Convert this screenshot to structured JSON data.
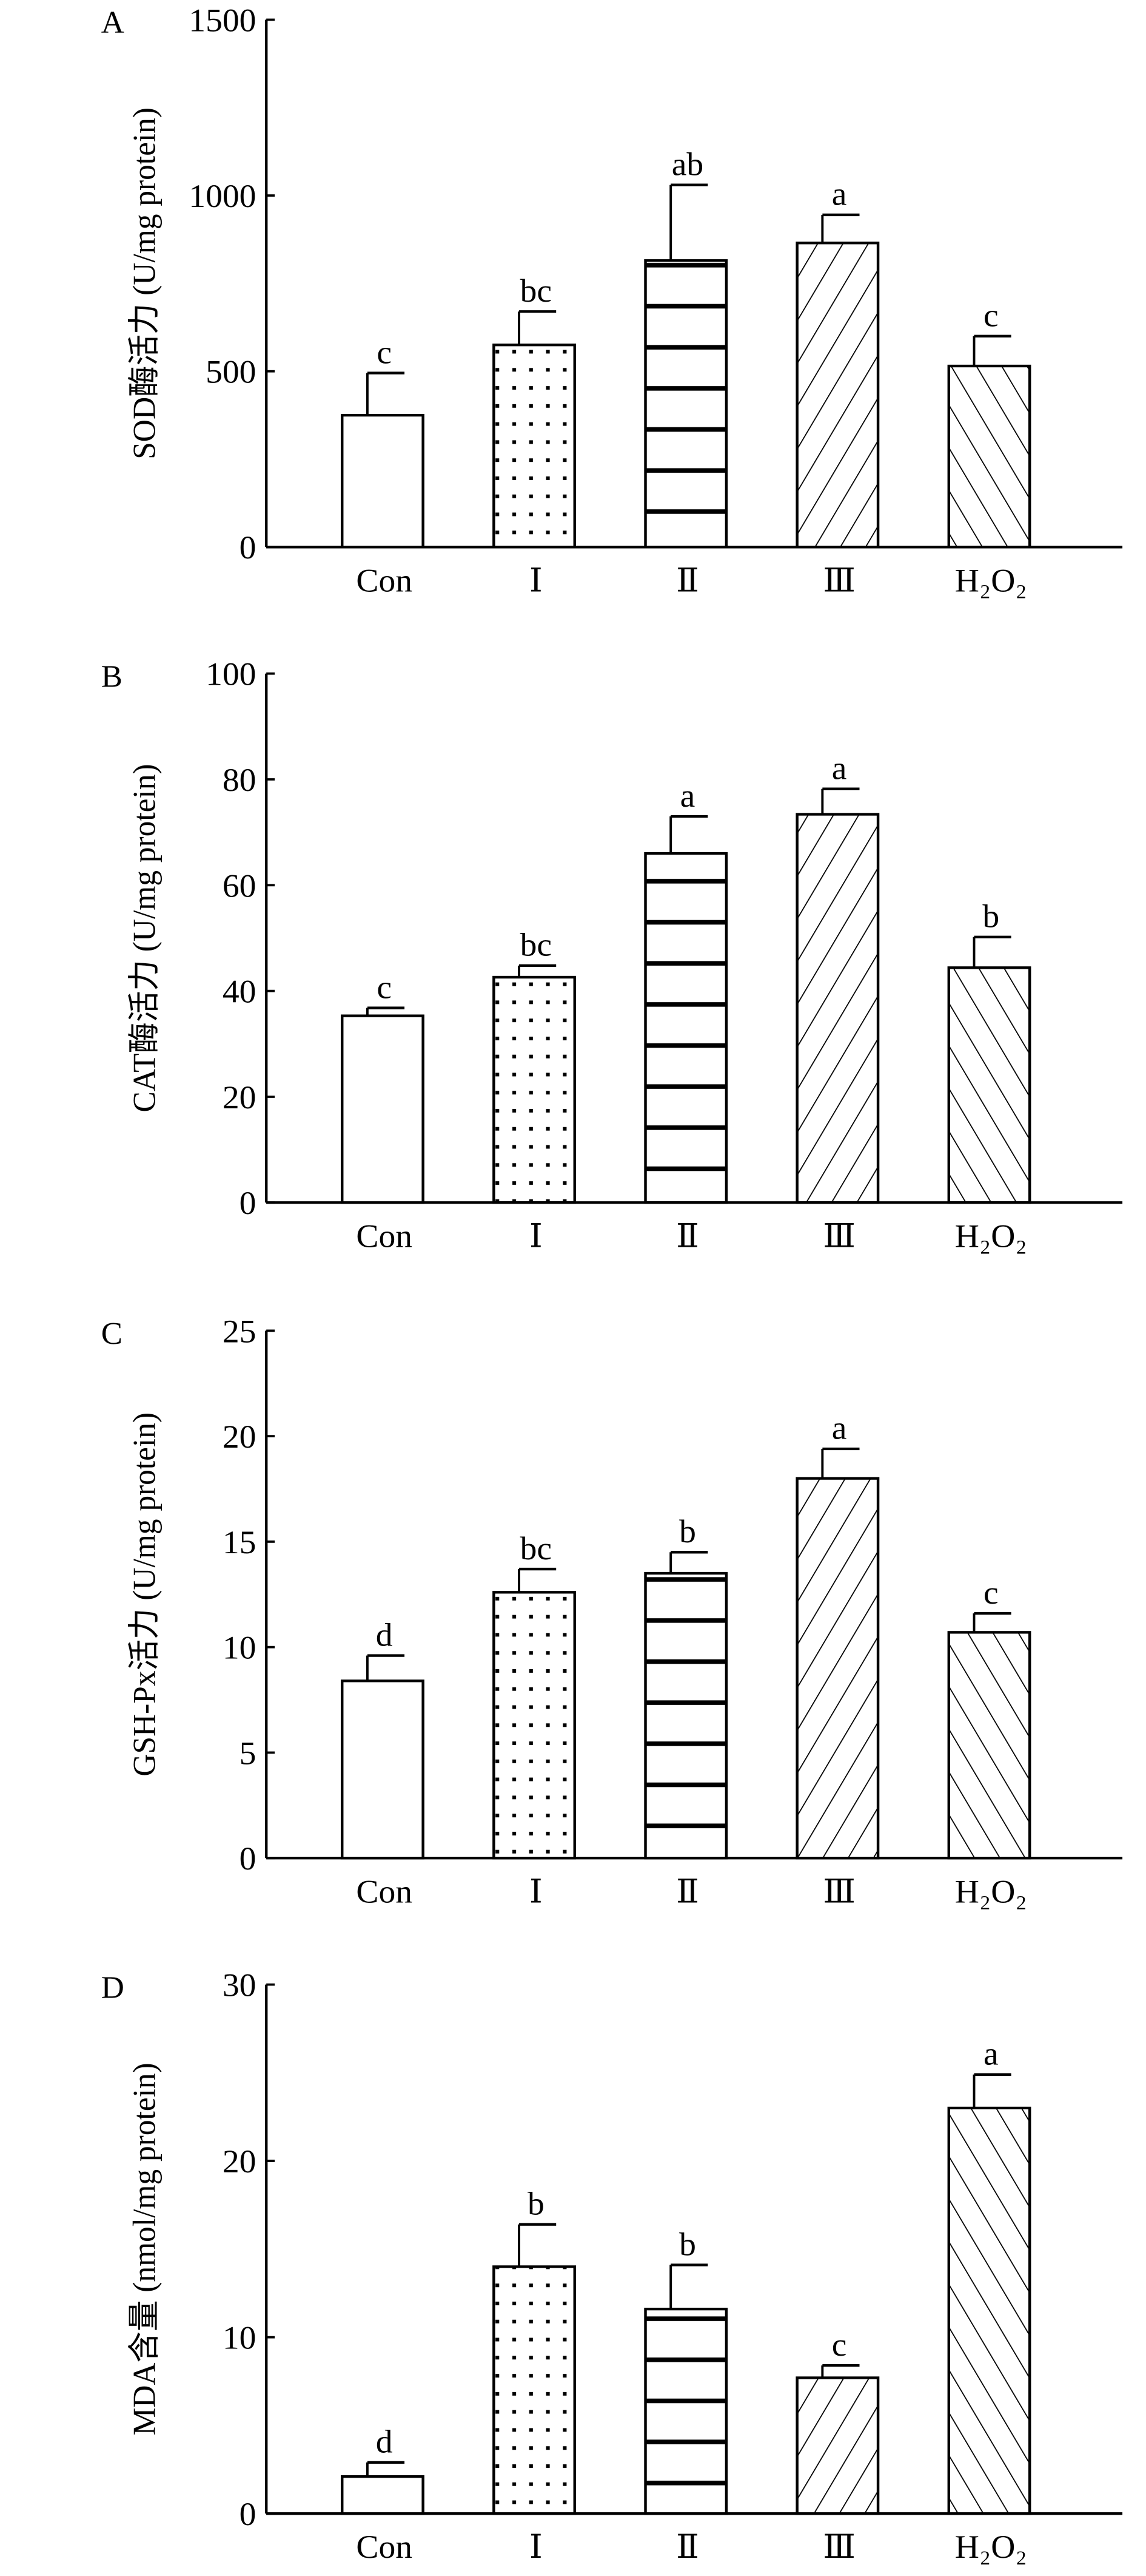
{
  "chart_data": [
    {
      "type": "bar",
      "panel_label": "A",
      "ylabel": "SOD酶活力 (U/mg protein)",
      "categories": [
        "Con",
        "Ⅰ",
        "Ⅱ",
        "Ⅲ",
        "H₂O₂"
      ],
      "values": [
        375,
        575,
        815,
        865,
        515
      ],
      "errors": [
        120,
        95,
        215,
        80,
        85
      ],
      "letters": [
        "c",
        "bc",
        "ab",
        "a",
        "c"
      ],
      "ylim": [
        0,
        1500
      ],
      "yticks": [
        0,
        500,
        1000,
        1500
      ],
      "grid": false
    },
    {
      "type": "bar",
      "panel_label": "B",
      "ylabel": "CAT酶活力 (U/mg protein)",
      "categories": [
        "Con",
        "Ⅰ",
        "Ⅱ",
        "Ⅲ",
        "H₂O₂"
      ],
      "values": [
        35.3,
        42.6,
        66.0,
        73.4,
        44.4
      ],
      "errors": [
        1.5,
        2.2,
        7.0,
        4.8,
        5.8
      ],
      "letters": [
        "c",
        "bc",
        "a",
        "a",
        "b"
      ],
      "ylim": [
        0,
        100
      ],
      "yticks": [
        0,
        20,
        40,
        60,
        80,
        100
      ],
      "grid": false
    },
    {
      "type": "bar",
      "panel_label": "C",
      "ylabel": "GSH-Px活力 (U/mg protein)",
      "categories": [
        "Con",
        "Ⅰ",
        "Ⅱ",
        "Ⅲ",
        "H₂O₂"
      ],
      "values": [
        8.4,
        12.6,
        13.5,
        18.0,
        10.7
      ],
      "errors": [
        1.2,
        1.1,
        1.0,
        1.4,
        0.9
      ],
      "letters": [
        "d",
        "bc",
        "b",
        "a",
        "c"
      ],
      "ylim": [
        0,
        25
      ],
      "yticks": [
        0,
        5,
        10,
        15,
        20,
        25
      ],
      "grid": false
    },
    {
      "type": "bar",
      "panel_label": "D",
      "ylabel": "MDA含量 (nmol/mg protein)",
      "categories": [
        "Con",
        "Ⅰ",
        "Ⅱ",
        "Ⅲ",
        "H₂O₂"
      ],
      "values": [
        2.1,
        14.0,
        11.6,
        7.7,
        23.0
      ],
      "errors": [
        0.8,
        2.4,
        2.5,
        0.7,
        1.9
      ],
      "letters": [
        "d",
        "b",
        "b",
        "c",
        "a"
      ],
      "ylim": [
        0,
        30
      ],
      "yticks": [
        0,
        10,
        20,
        30
      ],
      "grid": false
    }
  ],
  "bar_patterns": [
    "none",
    "dots",
    "horizontal-lines",
    "forward-diagonal",
    "back-diagonal"
  ],
  "colors": {
    "ink": "#000000",
    "background": "#ffffff"
  }
}
